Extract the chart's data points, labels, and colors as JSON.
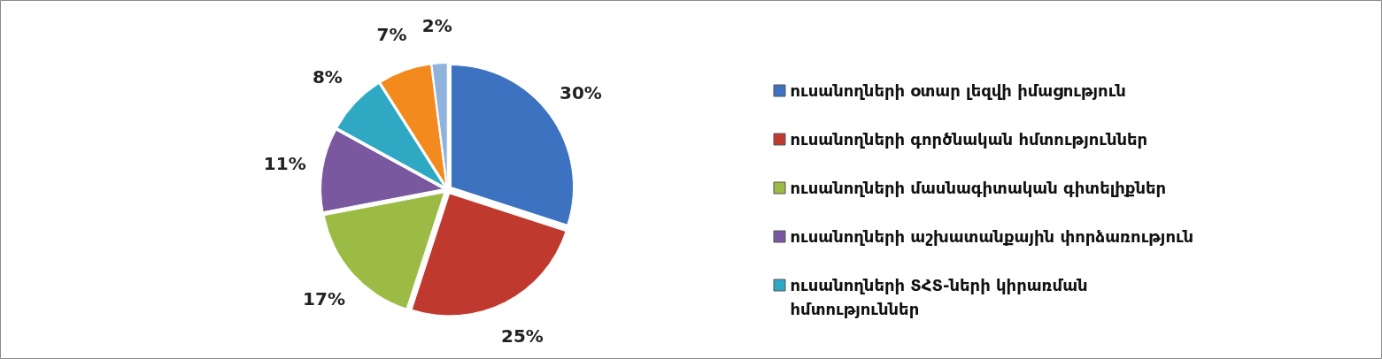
{
  "chart_data": {
    "type": "pie",
    "categories": [
      "ուսանողների օտար լեզվի իմացություն",
      "ուսանողների գործնական հմտություններ",
      "ուսանողների մասնագիտական գիտելիքներ",
      "ուսանողների աշխատանքային փորձառություն",
      "ուսանողների ՏՀՏ-ների կիրառման հմտություններ",
      null,
      null
    ],
    "values": [
      30,
      25,
      17,
      11,
      8,
      7,
      2
    ],
    "value_labels": [
      "30%",
      "25%",
      "17%",
      "11%",
      "8%",
      "7%",
      "2%"
    ],
    "colors": [
      "#3c72c0",
      "#c0392f",
      "#9bbb45",
      "#7a58a0",
      "#2fa8c4",
      "#f28a1e",
      "#8fb3dd"
    ],
    "legend": "right"
  }
}
